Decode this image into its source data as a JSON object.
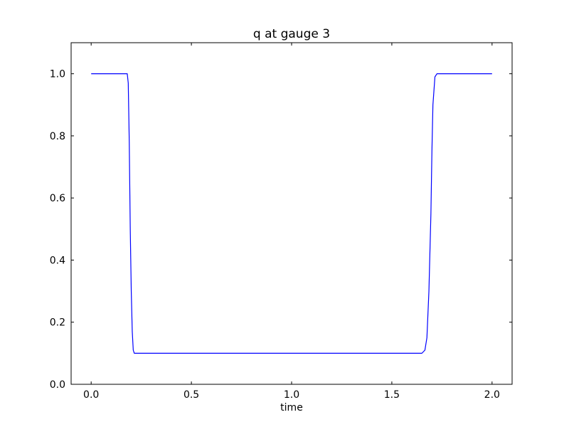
{
  "chart_data": {
    "type": "line",
    "title": "q at gauge 3",
    "xlabel": "time",
    "ylabel": "",
    "xlim": [
      -0.1,
      2.1
    ],
    "ylim": [
      0.0,
      1.1
    ],
    "xticks": [
      0.0,
      0.5,
      1.0,
      1.5,
      2.0
    ],
    "xtick_labels": [
      "0.0",
      "0.5",
      "1.0",
      "1.5",
      "2.0"
    ],
    "yticks": [
      0.0,
      0.2,
      0.4,
      0.6,
      0.8,
      1.0
    ],
    "ytick_labels": [
      "0.0",
      "0.2",
      "0.4",
      "0.6",
      "0.8",
      "1.0"
    ],
    "grid": false,
    "series": [
      {
        "color": "#0000ff",
        "x": [
          0.0,
          0.18,
          0.185,
          0.19,
          0.195,
          0.2,
          0.205,
          0.21,
          0.215,
          1.65,
          1.665,
          1.675,
          1.685,
          1.695,
          1.7,
          1.705,
          1.715,
          1.725,
          2.0
        ],
        "y": [
          1.0,
          1.0,
          0.97,
          0.78,
          0.5,
          0.3,
          0.17,
          0.11,
          0.1,
          0.1,
          0.11,
          0.15,
          0.3,
          0.55,
          0.75,
          0.9,
          0.99,
          1.0,
          1.0
        ]
      }
    ]
  }
}
